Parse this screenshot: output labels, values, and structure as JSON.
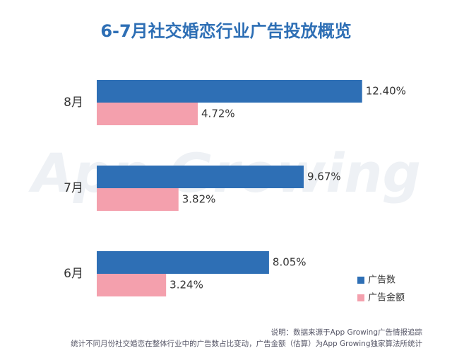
{
  "chart_data": {
    "type": "hbar",
    "title": "6-7月社交婚恋行业广告投放概览",
    "categories": [
      "8月",
      "7月",
      "6月"
    ],
    "series": [
      {
        "name": "广告数",
        "color": "#2e6fb5",
        "values": [
          12.4,
          9.67,
          8.05
        ],
        "value_labels": [
          "12.40%",
          "9.67%",
          "8.05%"
        ]
      },
      {
        "name": "广告金额",
        "color": "#f4a0ad",
        "values": [
          4.72,
          3.82,
          3.24
        ],
        "value_labels": [
          "4.72%",
          "3.82%",
          "3.24%"
        ]
      }
    ],
    "watermark": "App Growing",
    "notes": [
      "说明：数据来源于App Growing广告情报追踪",
      "统计不同月份社交婚恋在整体行业中的广告数占比变动，广告金额（估算）为App Growing独家算法所统计"
    ],
    "legend": "bottom-right"
  }
}
